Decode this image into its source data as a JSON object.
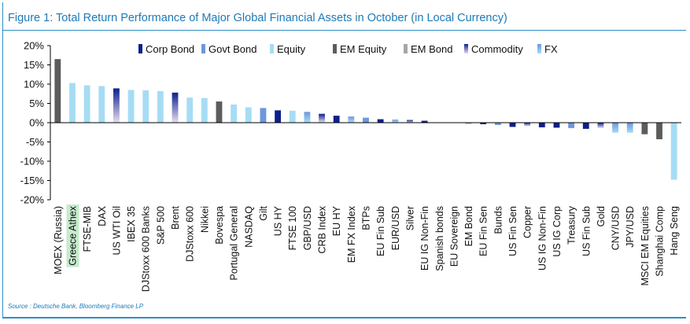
{
  "figure": {
    "title": "Figure 1: Total Return Performance of Major Global Financial Assets in October (in Local Currency)",
    "source": "Source : Deutsche Bank, Bloomberg Finance LP"
  },
  "colors": {
    "Corp Bond": "#0d1f8a",
    "Govt Bond": "#6e96dc",
    "Equity": "#a6dcf4",
    "EM Equity": "#5c5c5c",
    "EM Bond": "#a6a6a6",
    "Commodity": "#0d1f8a",
    "Commodity_fade": "#e6def0",
    "FX": "#a6dcf4",
    "FX_dark": "#6e96dc",
    "highlight_label_bg": "#c6ebcd",
    "title": "#1e7ab8"
  },
  "chart_data": {
    "type": "bar",
    "title": "Figure 1: Total Return Performance of Major Global Financial Assets in October (in Local Currency)",
    "xlabel": "",
    "ylabel": "",
    "ylim": [
      -20,
      20
    ],
    "yticks": [
      -20,
      -15,
      -10,
      -5,
      0,
      5,
      10,
      15,
      20
    ],
    "ytick_labels": [
      "-20%",
      "-15%",
      "-10%",
      "-5%",
      "0%",
      "5%",
      "10%",
      "15%",
      "20%"
    ],
    "legend": [
      "Corp Bond",
      "Govt Bond",
      "Equity",
      "EM Equity",
      "EM Bond",
      "Commodity",
      "FX"
    ],
    "legend_position": "top",
    "highlighted_category": "Greece Athex",
    "categories": [
      "MOEX (Russia)",
      "Greece Athex",
      "FTSE-MIB",
      "DAX",
      "US WTI Oil",
      "IBEX 35",
      "DJStoxx 600 Banks",
      "S&P 500",
      "Brent",
      "DJStoxx 600",
      "Nikkei",
      "Bovespa",
      "Portugal General",
      "NASDAQ",
      "Gilt",
      "US HY",
      "FTSE 100",
      "GBP/USD",
      "CRB Index",
      "EU HY",
      "EM FX Index",
      "BTPs",
      "EU Fin Sub",
      "EUR/USD",
      "Silver",
      "EU IG Non-Fin",
      "Spanish bonds",
      "EU Sovereign",
      "EM Bond",
      "EU Fin Sen",
      "Bunds",
      "US Fin Sen",
      "Copper",
      "US IG Non-Fin",
      "US IG Corp",
      "Treasury",
      "US Fin Sub",
      "Gold",
      "CNY/USD",
      "JPY/USD",
      "MSCI EM Equities",
      "Shanghai Comp",
      "Hang Seng"
    ],
    "values": [
      16.5,
      10.3,
      9.7,
      9.5,
      8.9,
      8.5,
      8.4,
      8.2,
      7.8,
      6.5,
      6.4,
      5.5,
      4.7,
      4.0,
      3.8,
      3.2,
      3.1,
      2.8,
      2.3,
      1.8,
      1.6,
      1.3,
      0.9,
      0.8,
      0.7,
      0.5,
      0.1,
      0.1,
      -0.3,
      -0.4,
      -0.6,
      -1.1,
      -0.9,
      -1.2,
      -1.3,
      -1.4,
      -1.6,
      -1.4,
      -2.6,
      -2.6,
      -3.0,
      -4.3,
      -14.8
    ],
    "asset_class": [
      "EM Equity",
      "Equity",
      "Equity",
      "Equity",
      "Commodity",
      "Equity",
      "Equity",
      "Equity",
      "Commodity",
      "Equity",
      "Equity",
      "EM Equity",
      "Equity",
      "Equity",
      "Govt Bond",
      "Corp Bond",
      "Equity",
      "FX",
      "Commodity",
      "Corp Bond",
      "FX",
      "Govt Bond",
      "Corp Bond",
      "FX",
      "Commodity",
      "Corp Bond",
      "Govt Bond",
      "Govt Bond",
      "EM Bond",
      "Corp Bond",
      "Govt Bond",
      "Corp Bond",
      "Commodity",
      "Corp Bond",
      "Corp Bond",
      "Govt Bond",
      "Corp Bond",
      "Commodity",
      "FX",
      "FX",
      "EM Equity",
      "EM Equity",
      "Equity"
    ]
  }
}
